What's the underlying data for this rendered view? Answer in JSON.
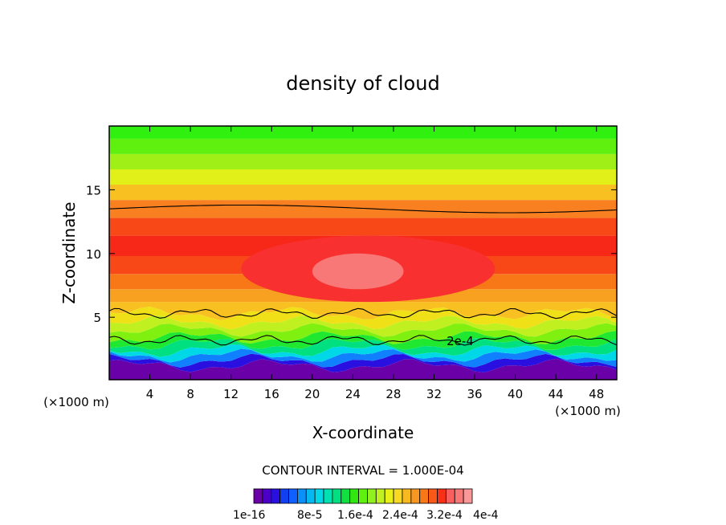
{
  "chart_data": {
    "type": "contour",
    "title": "density of cloud",
    "xlabel": "X-coordinate",
    "ylabel": "Z-coordinate",
    "x_unit_label": "(×1000 m)",
    "xlim": [
      0,
      50
    ],
    "ylim": [
      0.1,
      20
    ],
    "x_ticks": [
      4,
      8,
      12,
      16,
      20,
      24,
      28,
      32,
      36,
      40,
      44,
      48
    ],
    "y_ticks": [
      5,
      10,
      15
    ],
    "contour_line_label": "2e-4",
    "contour_interval_text": "CONTOUR INTERVAL = 1.000E-04",
    "colorbar_labels": [
      "1e-16",
      "8e-5",
      "1.6e-4",
      "2.4e-4",
      "3.2e-4",
      "4e-4"
    ],
    "colorbar_colors": [
      "#6a00a8",
      "#4b00c8",
      "#2a10e0",
      "#1040f0",
      "#1060ff",
      "#0a90f8",
      "#06b8f0",
      "#00d8e8",
      "#00e0b0",
      "#00e080",
      "#10e040",
      "#30e810",
      "#60f010",
      "#90f020",
      "#c0f020",
      "#e8f018",
      "#f8d820",
      "#f8b820",
      "#f89820",
      "#f87818",
      "#f85818",
      "#f83018",
      "#f86060",
      "#f87878",
      "#f89898"
    ],
    "band_boundaries_z": [
      1.2,
      1.6,
      2.0,
      2.4,
      2.9,
      3.4,
      4.0,
      4.6,
      5.3,
      6.2,
      7.2,
      8.4,
      9.8,
      11.4,
      12.8,
      14.2,
      15.4,
      16.6,
      17.8,
      19.0
    ],
    "band_colors": [
      "#6a00a8",
      "#2a10e0",
      "#1080ff",
      "#00d8e8",
      "#00e080",
      "#20e830",
      "#80f010",
      "#c0f020",
      "#f0e018",
      "#f8c020",
      "#f8a020",
      "#f87818",
      "#f84818",
      "#f82818",
      "#f84818",
      "#f88020",
      "#f8c020",
      "#e0f018",
      "#a0f018",
      "#60f010",
      "#30f010"
    ],
    "core_region": {
      "x": [
        20,
        29
      ],
      "z": [
        7.2,
        10
      ],
      "color": "#f87878"
    },
    "inner_region": {
      "x": [
        13,
        38
      ],
      "z": [
        6.2,
        11.4
      ],
      "color": "#f83030"
    },
    "upper_contour_z": 13.5,
    "lower_contour_z": 5.3,
    "mid_contour_z": 3.2
  }
}
